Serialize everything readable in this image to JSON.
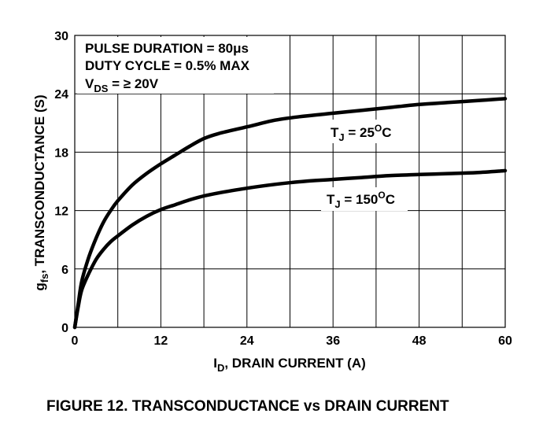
{
  "chart_data": {
    "type": "line",
    "xlabel": {
      "prefix": "I",
      "sub": "D",
      "rest": ", DRAIN CURRENT (A)"
    },
    "ylabel": {
      "prefix": "g",
      "sub": "fs",
      "rest": ", TRANSCONDUCTANCE (S)"
    },
    "xlim": [
      0,
      60
    ],
    "ylim": [
      0,
      30
    ],
    "xticks": [
      0,
      12,
      24,
      36,
      48,
      60
    ],
    "yticks": [
      0,
      6,
      12,
      18,
      24,
      30
    ],
    "grid": true,
    "notes": [
      {
        "text": "PULSE DURATION = 80μs"
      },
      {
        "text": "DUTY CYCLE = 0.5% MAX"
      },
      {
        "prefix": "V",
        "sub": "DS",
        "rest": " = ≥ 20V"
      }
    ],
    "series": [
      {
        "name": "TJ = 25°C",
        "label": {
          "prefix": "T",
          "sub": "J",
          "mid": " = 25",
          "sup": "O",
          "rest": "C"
        },
        "x": [
          0,
          0.5,
          1,
          2,
          3,
          4,
          5,
          6,
          8,
          10,
          12,
          14,
          16,
          18,
          20,
          24,
          28,
          32,
          36,
          40,
          44,
          48,
          52,
          56,
          60
        ],
        "y": [
          0,
          2.5,
          4.8,
          7.3,
          9.2,
          10.8,
          12.0,
          13.0,
          14.6,
          15.8,
          16.8,
          17.7,
          18.6,
          19.4,
          19.9,
          20.6,
          21.3,
          21.7,
          22.0,
          22.3,
          22.6,
          22.9,
          23.1,
          23.3,
          23.5
        ]
      },
      {
        "name": "TJ = 150°C",
        "label": {
          "prefix": "T",
          "sub": "J",
          "mid": " = 150",
          "sup": "O",
          "rest": "C"
        },
        "x": [
          0,
          0.5,
          1,
          2,
          3,
          4,
          5,
          6,
          8,
          10,
          12,
          14,
          16,
          18,
          20,
          24,
          28,
          32,
          36,
          40,
          44,
          48,
          52,
          56,
          60
        ],
        "y": [
          0,
          2.2,
          3.9,
          5.6,
          7.0,
          8.0,
          8.8,
          9.4,
          10.5,
          11.4,
          12.1,
          12.6,
          13.1,
          13.5,
          13.8,
          14.3,
          14.7,
          15.0,
          15.2,
          15.4,
          15.6,
          15.7,
          15.8,
          15.9,
          16.1
        ]
      }
    ]
  },
  "caption": "FIGURE 12.  TRANSCONDUCTANCE vs DRAIN CURRENT"
}
